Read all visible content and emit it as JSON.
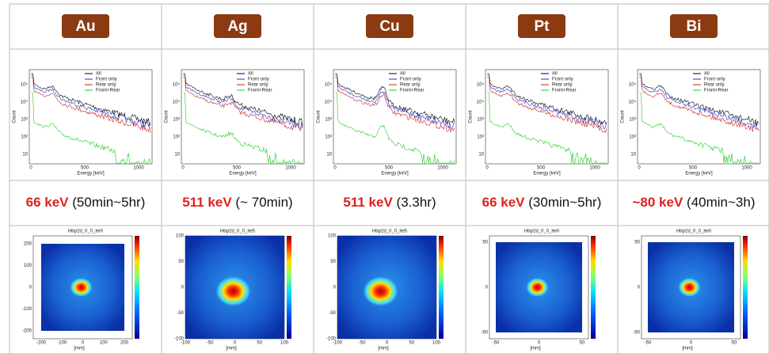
{
  "spectrum": {
    "legend": [
      "All",
      "Front only",
      "Rear only",
      "Front+Rear"
    ],
    "y_label": "Count",
    "x_label": "Energy [keV]",
    "x_ticks": [
      "0",
      "500",
      "1000"
    ],
    "y_ticks": [
      "10",
      "10²",
      "10³",
      "10⁴",
      "10⁵"
    ]
  },
  "columns": [
    {
      "element": "Au",
      "energy": "66 keV",
      "duration": "(50min~5hr)",
      "image": {
        "title": "Hbp2d_0_0_ite0",
        "x_label": "[mm]",
        "x_ticks": [
          "-200",
          "-100",
          "0",
          "100",
          "200"
        ],
        "y_ticks": [
          "200",
          "100",
          "0",
          "-100",
          "-200"
        ]
      }
    },
    {
      "element": "Ag",
      "energy": "511 keV",
      "duration": "(~ 70min)",
      "image": {
        "title": "Hbp2d_0_0_ite5",
        "x_label": "[mm]",
        "x_ticks": [
          "-100",
          "-50",
          "0",
          "50",
          "100"
        ],
        "y_ticks": [
          "100",
          "50",
          "0",
          "-50",
          "-100"
        ]
      }
    },
    {
      "element": "Cu",
      "energy": "511 keV",
      "duration": "(3.3hr)",
      "image": {
        "title": "Hbp2d_0_0_ite5",
        "x_label": "[mm]",
        "x_ticks": [
          "-100",
          "-50",
          "0",
          "50",
          "100"
        ],
        "y_ticks": [
          "100",
          "50",
          "0",
          "-50",
          "-100"
        ]
      }
    },
    {
      "element": "Pt",
      "energy": "66 keV",
      "duration": "(30min~5hr)",
      "image": {
        "title": "Hbp2d_0_0_ite0",
        "x_label": "[mm]",
        "x_ticks": [
          "-50",
          "0",
          "50"
        ],
        "y_ticks": [
          "50",
          "0",
          "-50"
        ]
      }
    },
    {
      "element": "Bi",
      "energy": "~80 keV",
      "duration": "(40min~3h)",
      "image": {
        "title": "Hbp2d_0_0_ite0",
        "x_label": "[mm]",
        "x_ticks": [
          "-50",
          "0",
          "50"
        ],
        "y_ticks": [
          "50",
          "0",
          "-50"
        ]
      }
    }
  ]
}
